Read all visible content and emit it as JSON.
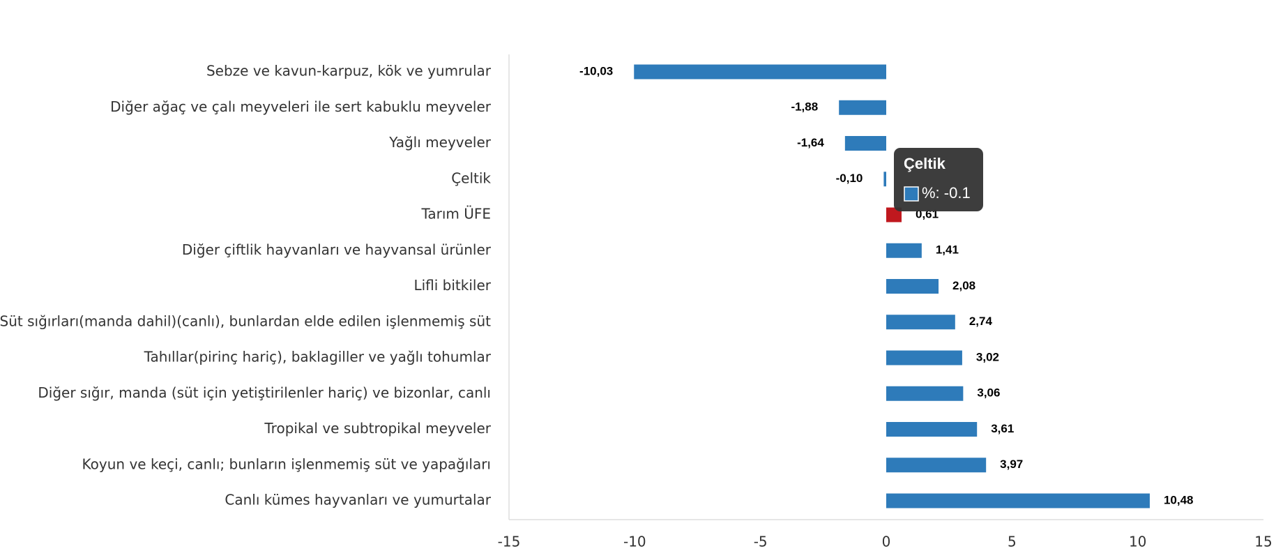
{
  "chart_data": {
    "type": "barh",
    "categories": [
      "Sebze ve kavun-karpuz, kök ve yumrular",
      "Diğer ağaç ve çalı meyveleri ile sert kabuklu meyveler",
      "Yağlı meyveler",
      "Çeltik",
      "Tarım ÜFE",
      "Diğer çiftlik hayvanları ve hayvansal ürünler",
      "Lifli bitkiler",
      "Süt sığırları(manda dahil)(canlı), bunlardan elde edilen işlenmemiş süt",
      "Tahıllar(pirinç hariç), baklagiller ve yağlı tohumlar",
      "Diğer sığır, manda (süt için yetiştirilenler hariç) ve bizonlar, canlı",
      "Tropikal ve subtropikal meyveler",
      "Koyun ve keçi, canlı; bunların işlenmemiş süt ve yapağıları",
      "Canlı kümes hayvanları ve yumurtalar"
    ],
    "values": [
      -10.03,
      -1.88,
      -1.64,
      -0.1,
      0.61,
      1.41,
      2.08,
      2.74,
      3.02,
      3.06,
      3.61,
      3.97,
      10.48
    ],
    "value_labels": [
      "-10,03",
      "-1,88",
      "-1,64",
      "-0,10",
      "0,61",
      "1,41",
      "2,08",
      "2,74",
      "3,02",
      "3,06",
      "3,61",
      "3,97",
      "10,48"
    ],
    "colors": [
      "#2e7bba",
      "#2e7bba",
      "#2e7bba",
      "#2e7bba",
      "#c0181e",
      "#2e7bba",
      "#2e7bba",
      "#2e7bba",
      "#2e7bba",
      "#2e7bba",
      "#2e7bba",
      "#2e7bba",
      "#2e7bba"
    ],
    "xlim": [
      -15,
      15
    ],
    "xticks": [
      -15,
      -10,
      -5,
      0,
      5,
      10,
      15
    ],
    "tooltip": {
      "title": "Çeltik",
      "label": "%: -0.1"
    }
  }
}
